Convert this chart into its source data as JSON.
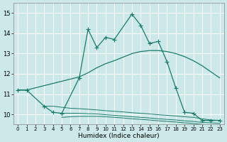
{
  "xlabel": "Humidex (Indice chaleur)",
  "background_color": "#cce8e8",
  "grid_color": "#ffffff",
  "line_color": "#1a7a6a",
  "ylim": [
    9.5,
    15.5
  ],
  "yticks": [
    10,
    11,
    12,
    13,
    14,
    15
  ],
  "xlim": [
    -0.5,
    23.5
  ],
  "main_x": [
    0,
    1,
    3,
    4,
    5,
    7,
    8,
    9,
    10,
    11,
    13,
    14,
    15,
    16,
    17,
    18,
    19,
    20,
    21,
    22,
    23
  ],
  "main_y": [
    11.2,
    11.2,
    10.4,
    10.1,
    10.05,
    11.8,
    14.2,
    13.3,
    13.8,
    13.7,
    14.95,
    14.4,
    13.5,
    13.6,
    12.6,
    11.3,
    10.1,
    10.05,
    9.7,
    9.7,
    9.7
  ],
  "diag_x": [
    0,
    1,
    7,
    8,
    9,
    10,
    11,
    13,
    14,
    15,
    16,
    17,
    18,
    19,
    20,
    21,
    22,
    23
  ],
  "diag_y": [
    11.2,
    11.2,
    11.85,
    12.05,
    12.3,
    12.5,
    12.65,
    13.0,
    13.1,
    13.15,
    13.15,
    13.1,
    13.0,
    12.85,
    12.65,
    12.4,
    12.1,
    11.8
  ],
  "flat1_x": [
    3,
    4,
    5,
    6,
    7,
    8,
    9,
    10,
    11,
    12,
    13,
    14,
    15,
    16,
    17,
    18,
    19,
    20,
    21,
    22,
    23
  ],
  "flat1_y": [
    10.4,
    10.4,
    10.35,
    10.3,
    10.28,
    10.25,
    10.22,
    10.18,
    10.15,
    10.12,
    10.08,
    10.05,
    10.02,
    9.98,
    9.95,
    9.92,
    9.88,
    9.85,
    9.78,
    9.72,
    9.7
  ],
  "flat2_x": [
    5,
    6,
    7,
    8,
    9,
    10,
    11,
    12,
    13,
    14,
    15,
    16,
    17,
    18,
    19,
    20,
    21,
    22,
    23
  ],
  "flat2_y": [
    10.05,
    10.05,
    10.05,
    10.03,
    10.02,
    9.98,
    9.95,
    9.92,
    9.88,
    9.85,
    9.82,
    9.78,
    9.75,
    9.72,
    9.68,
    9.65,
    9.6,
    9.58,
    9.55
  ],
  "flat3_x": [
    5,
    6,
    7,
    8,
    9,
    10,
    11,
    12,
    13,
    14,
    15,
    16,
    17,
    18,
    19,
    20,
    21,
    22,
    23
  ],
  "flat3_y": [
    9.85,
    9.88,
    9.9,
    9.9,
    9.9,
    9.88,
    9.85,
    9.82,
    9.78,
    9.75,
    9.72,
    9.68,
    9.65,
    9.62,
    9.58,
    9.55,
    9.5,
    9.48,
    9.47
  ]
}
